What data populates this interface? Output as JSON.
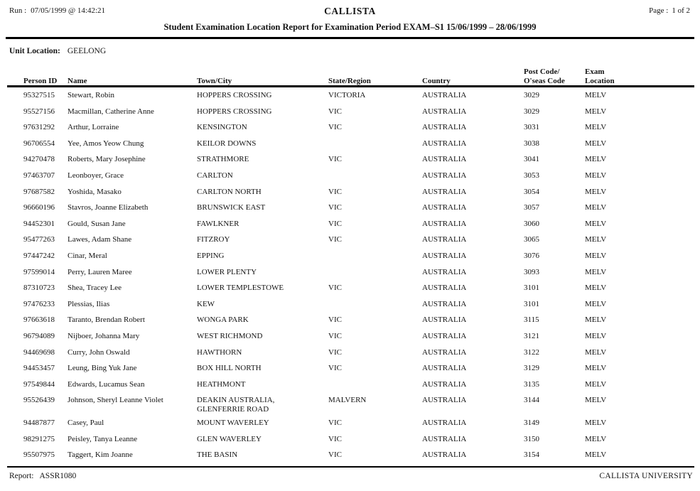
{
  "header": {
    "run_label": "Run :",
    "run_value": "07/05/1999 @ 14:42:21",
    "app_title": "CALLISTA",
    "page_label": "Page :",
    "page_value": "1 of 2",
    "report_title": "Student Examination Location Report for Examination Period EXAM–S1 15/06/1999 – 28/06/1999"
  },
  "unit_location": {
    "label": "Unit Location:",
    "value": "GEELONG"
  },
  "table": {
    "columns": [
      "Person ID",
      "Name",
      "Town/City",
      "State/Region",
      "Country",
      "Post Code/\nO'seas Code",
      "Exam\nLocation"
    ],
    "rows": [
      {
        "id": "95327515",
        "name": "Stewart, Robin",
        "town": "HOPPERS CROSSING",
        "state": "VICTORIA",
        "country": "AUSTRALIA",
        "postcode": "3029",
        "exam": "MELV"
      },
      {
        "id": "95527156",
        "name": "Macmillan, Catherine Anne",
        "town": "HOPPERS CROSSING",
        "state": "VIC",
        "country": "AUSTRALIA",
        "postcode": "3029",
        "exam": "MELV"
      },
      {
        "id": "97631292",
        "name": "Arthur, Lorraine",
        "town": "KENSINGTON",
        "state": "VIC",
        "country": "AUSTRALIA",
        "postcode": "3031",
        "exam": "MELV"
      },
      {
        "id": "96706554",
        "name": "Yee, Amos Yeow Chung",
        "town": "KEILOR DOWNS",
        "state": "",
        "country": "AUSTRALIA",
        "postcode": "3038",
        "exam": "MELV"
      },
      {
        "id": "94270478",
        "name": "Roberts, Mary Josephine",
        "town": "STRATHMORE",
        "state": "VIC",
        "country": "AUSTRALIA",
        "postcode": "3041",
        "exam": "MELV"
      },
      {
        "id": "97463707",
        "name": "Leonboyer, Grace",
        "town": "CARLTON",
        "state": "",
        "country": "AUSTRALIA",
        "postcode": "3053",
        "exam": "MELV"
      },
      {
        "id": "97687582",
        "name": "Yoshida, Masako",
        "town": "CARLTON NORTH",
        "state": "VIC",
        "country": "AUSTRALIA",
        "postcode": "3054",
        "exam": "MELV"
      },
      {
        "id": "96660196",
        "name": "Stavros, Joanne Elizabeth",
        "town": "BRUNSWICK EAST",
        "state": "VIC",
        "country": "AUSTRALIA",
        "postcode": "3057",
        "exam": "MELV"
      },
      {
        "id": "94452301",
        "name": "Gould, Susan Jane",
        "town": "FAWLKNER",
        "state": "VIC",
        "country": "AUSTRALIA",
        "postcode": "3060",
        "exam": "MELV"
      },
      {
        "id": "95477263",
        "name": "Lawes, Adam Shane",
        "town": "FITZROY",
        "state": "VIC",
        "country": "AUSTRALIA",
        "postcode": "3065",
        "exam": "MELV"
      },
      {
        "id": "97447242",
        "name": "Cinar, Meral",
        "town": "EPPING",
        "state": "",
        "country": "AUSTRALIA",
        "postcode": "3076",
        "exam": "MELV"
      },
      {
        "id": "97599014",
        "name": "Perry, Lauren Maree",
        "town": "LOWER PLENTY",
        "state": "",
        "country": "AUSTRALIA",
        "postcode": "3093",
        "exam": "MELV"
      },
      {
        "id": "87310723",
        "name": "Shea, Tracey Lee",
        "town": "LOWER TEMPLESTOWE",
        "state": "VIC",
        "country": "AUSTRALIA",
        "postcode": "3101",
        "exam": "MELV"
      },
      {
        "id": "97476233",
        "name": "Plessias, Ilias",
        "town": "KEW",
        "state": "",
        "country": "AUSTRALIA",
        "postcode": "3101",
        "exam": "MELV"
      },
      {
        "id": "97663618",
        "name": "Taranto, Brendan Robert",
        "town": "WONGA PARK",
        "state": "VIC",
        "country": "AUSTRALIA",
        "postcode": "3115",
        "exam": "MELV"
      },
      {
        "id": "96794089",
        "name": "Nijboer, Johanna Mary",
        "town": "WEST RICHMOND",
        "state": "VIC",
        "country": "AUSTRALIA",
        "postcode": "3121",
        "exam": "MELV"
      },
      {
        "id": "94469698",
        "name": "Curry, John Oswald",
        "town": "HAWTHORN",
        "state": "VIC",
        "country": "AUSTRALIA",
        "postcode": "3122",
        "exam": "MELV"
      },
      {
        "id": "94453457",
        "name": "Leung, Bing Yuk Jane",
        "town": "BOX HILL NORTH",
        "state": "VIC",
        "country": "AUSTRALIA",
        "postcode": "3129",
        "exam": "MELV"
      },
      {
        "id": "97549844",
        "name": "Edwards, Lucamus Sean",
        "town": "HEATHMONT",
        "state": "",
        "country": "AUSTRALIA",
        "postcode": "3135",
        "exam": "MELV"
      },
      {
        "id": "95526439",
        "name": "Johnson, Sheryl Leanne Violet",
        "town": "DEAKIN AUSTRALIA,\nGLENFERRIE ROAD",
        "state": "MALVERN",
        "country": "AUSTRALIA",
        "postcode": "3144",
        "exam": "MELV"
      },
      {
        "id": "94487877",
        "name": "Casey, Paul",
        "town": "MOUNT WAVERLEY",
        "state": "VIC",
        "country": "AUSTRALIA",
        "postcode": "3149",
        "exam": "MELV"
      },
      {
        "id": "98291275",
        "name": "Peisley, Tanya Leanne",
        "town": "GLEN WAVERLEY",
        "state": "VIC",
        "country": "AUSTRALIA",
        "postcode": "3150",
        "exam": "MELV"
      },
      {
        "id": "95507975",
        "name": "Taggert, Kim Joanne",
        "town": "THE BASIN",
        "state": "VIC",
        "country": "AUSTRALIA",
        "postcode": "3154",
        "exam": "MELV"
      }
    ]
  },
  "footer": {
    "report_label": "Report:",
    "report_value": "ASSR1080",
    "org": "CALLISTA UNIVERSITY"
  }
}
